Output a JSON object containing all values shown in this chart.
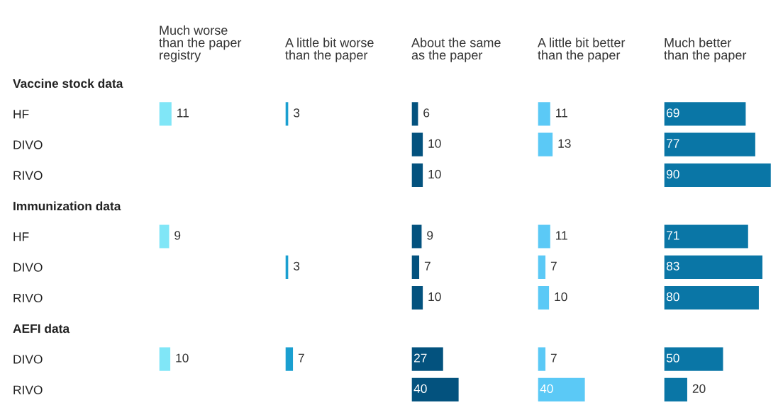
{
  "chart_data": [
    {
      "type": "bar",
      "orientation": "horizontal",
      "title": "Much worse\nthan the paper\nregistry",
      "categories": [
        "Vaccine stock data",
        "HF",
        "DIVO",
        "RIVO",
        "Immunization data",
        "HF",
        "DIVO",
        "RIVO",
        "AEFI data",
        "DIVO",
        "RIVO"
      ],
      "values": [
        null,
        11,
        null,
        null,
        null,
        9,
        null,
        null,
        null,
        10,
        null
      ],
      "color": "#80e6f7",
      "data_labels": true,
      "tick_labels": "y"
    },
    {
      "type": "bar",
      "orientation": "horizontal",
      "title": "A little bit worse\nthan the paper",
      "values": [
        null,
        3,
        null,
        null,
        null,
        null,
        3,
        null,
        null,
        7,
        null
      ],
      "color": "#1a9fd0",
      "data_labels": true,
      "tick_labels": false
    },
    {
      "type": "bar",
      "orientation": "horizontal",
      "title": "About the same\nas the paper",
      "values": [
        null,
        6,
        10,
        10,
        null,
        9,
        7,
        10,
        null,
        27,
        40
      ],
      "color": "#03527e",
      "data_labels": true,
      "tick_labels": false
    },
    {
      "type": "bar",
      "orientation": "horizontal",
      "title": "A little bit better\nthan the paper",
      "values": [
        null,
        11,
        13,
        null,
        null,
        11,
        7,
        10,
        null,
        7,
        40
      ],
      "color": "#5bc9f6",
      "data_labels": true,
      "tick_labels": false
    },
    {
      "type": "bar",
      "orientation": "horizontal",
      "title": "Much better\nthan the paper",
      "values": [
        null,
        69,
        77,
        90,
        null,
        71,
        83,
        80,
        null,
        50,
        20
      ],
      "color": "#0a76a6",
      "data_labels": true,
      "tick_labels": false
    }
  ]
}
